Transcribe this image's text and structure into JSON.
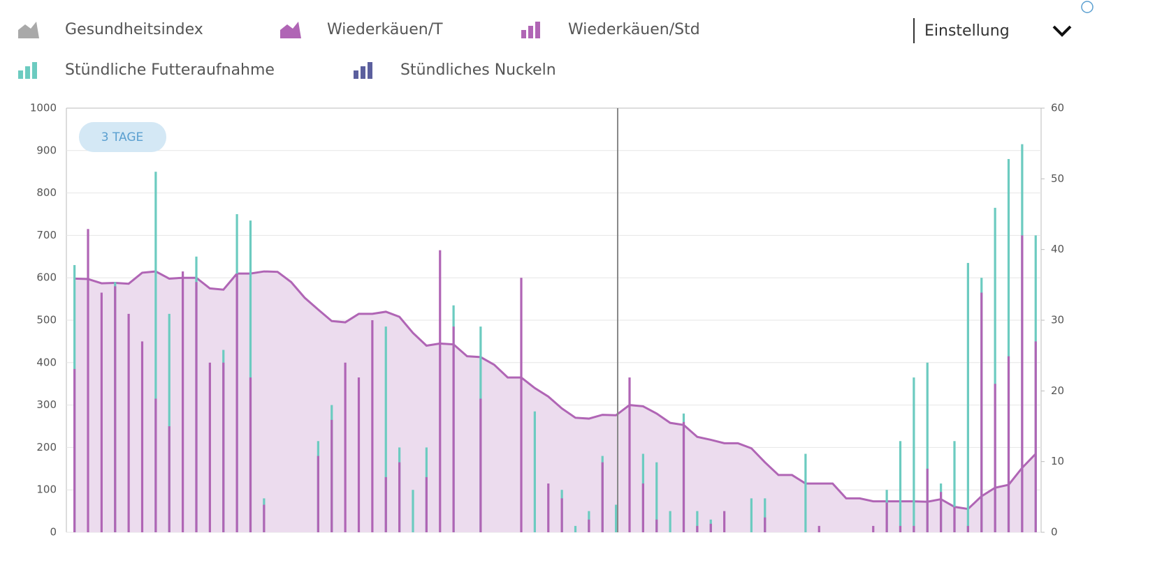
{
  "chart_data": {
    "type": "bar",
    "badge": "3 TAGE",
    "dropdown": "Einstellung",
    "ylim": [
      0,
      1000
    ],
    "yticks": [
      0,
      100,
      200,
      300,
      400,
      500,
      600,
      700,
      800,
      900,
      1000
    ],
    "y2lim": [
      0,
      60
    ],
    "y2ticks": [
      0,
      10,
      20,
      30,
      40,
      50,
      60
    ],
    "grid": true,
    "series": [
      {
        "name": "Gesundheitsindex",
        "color": "#a9a9a9",
        "kind": "area"
      },
      {
        "name": "Wiederkäuen/T",
        "color": "#b065b5",
        "kind": "area",
        "fill": "#ecdcee",
        "values": [
          598,
          597,
          587,
          588,
          586,
          612,
          615,
          598,
          600,
          600,
          575,
          572,
          610,
          610,
          615,
          614,
          590,
          553,
          525,
          498,
          495,
          515,
          515,
          520,
          508,
          470,
          440,
          445,
          443,
          415,
          413,
          395,
          365,
          365,
          340,
          320,
          292,
          270,
          268,
          277,
          276,
          300,
          297,
          280,
          258,
          253,
          225,
          218,
          210,
          210,
          198,
          165,
          135,
          135,
          115,
          115,
          115,
          80,
          80,
          73,
          73,
          73,
          73,
          72,
          78,
          60,
          55,
          85,
          105,
          112,
          152,
          185
        ]
      },
      {
        "name": "Wiederkäuen/Std",
        "color": "#b065b5",
        "kind": "bar",
        "axis": "y2",
        "values": [
          23.1,
          42.9,
          33.9,
          34.8,
          30.9,
          27,
          18.9,
          15,
          36.9,
          35.4,
          24,
          24,
          36.6,
          21.9,
          3.9,
          0,
          0,
          0,
          10.8,
          15.9,
          24,
          21.9,
          30,
          7.8,
          9.9,
          0,
          7.8,
          39.9,
          29.1,
          0,
          18.9,
          0,
          0,
          36,
          0,
          6.9,
          4.8,
          0,
          1.8,
          9.9,
          0,
          21.9,
          6.9,
          1.8,
          0,
          15.6,
          0.9,
          1.2,
          3,
          0,
          0,
          2.1,
          0,
          0,
          0,
          0.9,
          0,
          0,
          0,
          0.9,
          4.2,
          0.9,
          0.9,
          9,
          5.7,
          3.6,
          0.9,
          33.9,
          21,
          24.9,
          42,
          27
        ]
      },
      {
        "name": "Stündliche Futteraufnahme",
        "color": "#6ccbc0",
        "kind": "bar",
        "axis": "y2",
        "values": [
          37.8,
          0,
          0,
          35.4,
          0,
          0,
          51,
          30.9,
          0,
          39,
          0,
          25.8,
          45,
          44.1,
          4.8,
          0,
          0,
          0,
          12.9,
          18,
          0,
          0,
          0,
          29.1,
          12,
          6,
          12,
          0,
          32.1,
          0,
          29.1,
          0,
          0,
          0,
          17.1,
          0,
          6,
          0.9,
          3,
          10.8,
          3.9,
          0,
          11.1,
          9.9,
          3,
          16.8,
          3,
          1.8,
          0,
          0,
          4.8,
          4.8,
          0,
          0,
          11.1,
          0,
          0,
          0,
          0,
          0,
          6,
          12.9,
          21.9,
          24,
          6.9,
          12.9,
          38.1,
          36,
          45.9,
          52.8,
          54.9,
          42
        ]
      },
      {
        "name": "Stündliches Nuckeln",
        "color": "#5b5f9e",
        "kind": "bar"
      }
    ]
  }
}
